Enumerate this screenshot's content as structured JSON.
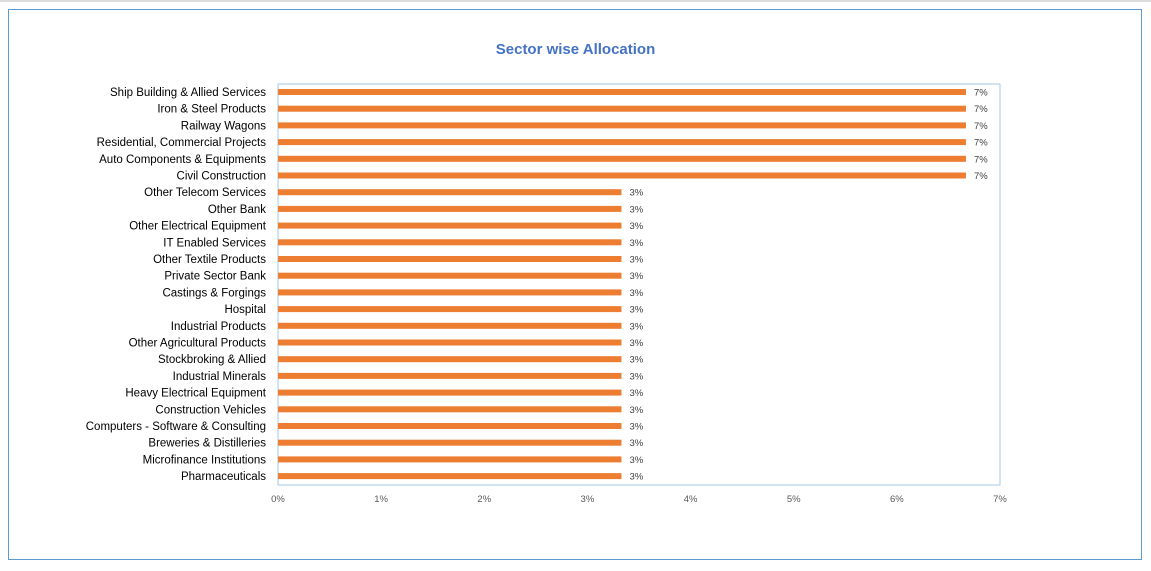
{
  "chart_data": {
    "type": "bar",
    "orientation": "horizontal",
    "title": "Sector wise Allocation",
    "xlabel": "",
    "ylabel": "",
    "categories": [
      "Ship Building & Allied Services",
      "Iron & Steel Products",
      "Railway Wagons",
      "Residential, Commercial Projects",
      "Auto Components & Equipments",
      "Civil Construction",
      "Other Telecom Services",
      "Other Bank",
      "Other Electrical Equipment",
      "IT Enabled Services",
      "Other Textile Products",
      "Private Sector Bank",
      "Castings & Forgings",
      "Hospital",
      "Industrial Products",
      "Other Agricultural Products",
      "Stockbroking & Allied",
      "Industrial Minerals",
      "Heavy Electrical Equipment",
      "Construction Vehicles",
      "Computers - Software & Consulting",
      "Breweries & Distilleries",
      "Microfinance Institutions",
      "Pharmaceuticals"
    ],
    "values": [
      6.67,
      6.67,
      6.67,
      6.67,
      6.67,
      6.67,
      3.33,
      3.33,
      3.33,
      3.33,
      3.33,
      3.33,
      3.33,
      3.33,
      3.33,
      3.33,
      3.33,
      3.33,
      3.33,
      3.33,
      3.33,
      3.33,
      3.33,
      3.33
    ],
    "data_labels": [
      "7%",
      "7%",
      "7%",
      "7%",
      "7%",
      "7%",
      "3%",
      "3%",
      "3%",
      "3%",
      "3%",
      "3%",
      "3%",
      "3%",
      "3%",
      "3%",
      "3%",
      "3%",
      "3%",
      "3%",
      "3%",
      "3%",
      "3%",
      "3%"
    ],
    "x_ticks": [
      "0%",
      "1%",
      "2%",
      "3%",
      "4%",
      "5%",
      "6%",
      "7%"
    ],
    "xlim": [
      0,
      7
    ],
    "grid": false,
    "legend": "none",
    "colors": {
      "bar": "#ed7d31",
      "title": "#4472c4",
      "frame": "#5b9bd5",
      "plot_border": "#a6c8e6",
      "category_text": "#000000",
      "tick_text": "#595959",
      "data_label_text": "#404040"
    }
  }
}
